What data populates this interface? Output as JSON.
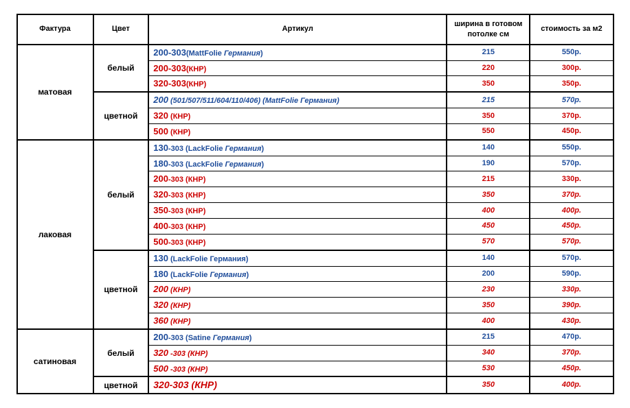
{
  "colors": {
    "blue": "#1e4c9a",
    "red": "#cc0000",
    "border": "#000000",
    "bg": "#ffffff"
  },
  "font": {
    "family": "Arial",
    "base_size_pt": 11,
    "code_size_pt": 13
  },
  "headers": {
    "faktura": "Фактура",
    "color": "Цвет",
    "article": "Артикул",
    "width": "ширина в готовом потолке см",
    "price": "стоимость за м2"
  },
  "groups": [
    {
      "faktura": "матовая",
      "colors": [
        {
          "color": "белый",
          "rows": [
            {
              "code": "200-303",
              "suffix": "",
              "brand_prefix": "(MattFolie ",
              "brand_italic": "Германия",
              "brand_suffix": ")",
              "width": "215",
              "price": "550р.",
              "c": "blue",
              "italic_vals": false
            },
            {
              "code": "200-303",
              "suffix": "",
              "brand_prefix": "(",
              "brand_italic": "",
              "brand_suffix": "КНР)",
              "width": "220",
              "price": "300р.",
              "c": "red",
              "italic_vals": false
            },
            {
              "code": "320-303",
              "suffix": "",
              "brand_prefix": "(",
              "brand_italic": "",
              "brand_suffix": "КНР)",
              "width": "350",
              "price": "350р.",
              "c": "red",
              "italic_vals": false
            }
          ]
        },
        {
          "color": "цветной",
          "rows": [
            {
              "code": "200",
              "suffix": "   (501/507/511/604/110/406)",
              "brand_prefix": "   (MattFolie ",
              "brand_italic": "Германия",
              "brand_suffix": ")",
              "width": "215",
              "price": "570р.",
              "c": "blue",
              "italic_vals": true,
              "art_italic": true
            },
            {
              "code": "320",
              "suffix": "",
              "brand_prefix": " (",
              "brand_italic": "",
              "brand_suffix": "КНР)",
              "width": "350",
              "price": "370р.",
              "c": "red",
              "italic_vals": false
            },
            {
              "code": "500",
              "suffix": "",
              "brand_prefix": " (",
              "brand_italic": "",
              "brand_suffix": "КНР)",
              "width": "550",
              "price": "450р.",
              "c": "red",
              "italic_vals": false
            }
          ]
        }
      ]
    },
    {
      "faktura": "лаковая",
      "colors": [
        {
          "color": "белый",
          "rows": [
            {
              "code": "130",
              "suffix": "-303",
              "brand_prefix": " (LackFolie ",
              "brand_italic": "Германия",
              "brand_suffix": ")",
              "width": "140",
              "price": "550р.",
              "c": "blue",
              "italic_vals": false
            },
            {
              "code": "180",
              "suffix": "-303",
              "brand_prefix": " (LackFolie ",
              "brand_italic": "Германия",
              "brand_suffix": ")",
              "width": "190",
              "price": "570р.",
              "c": "blue",
              "italic_vals": false
            },
            {
              "code": "200",
              "suffix": "-303",
              "brand_prefix": " (",
              "brand_italic": "",
              "brand_suffix": "КНР)",
              "width": "215",
              "price": "330р.",
              "c": "red",
              "italic_vals": false
            },
            {
              "code": "320",
              "suffix": "-303",
              "brand_prefix": " (",
              "brand_italic": "",
              "brand_suffix": "КНР)",
              "width": "350",
              "price": "370р.",
              "c": "red",
              "italic_vals": true
            },
            {
              "code": "350",
              "suffix": "-303",
              "brand_prefix": " (",
              "brand_italic": "",
              "brand_suffix": "КНР)",
              "width": "400",
              "price": "400р.",
              "c": "red",
              "italic_vals": true
            },
            {
              "code": "400",
              "suffix": "-303",
              "brand_prefix": " (",
              "brand_italic": "",
              "brand_suffix": "КНР)",
              "width": "450",
              "price": "450р.",
              "c": "red",
              "italic_vals": true
            },
            {
              "code": "500",
              "suffix": "-303",
              "brand_prefix": " (",
              "brand_italic": "",
              "brand_suffix": "КНР)",
              "width": "570",
              "price": "570р.",
              "c": "red",
              "italic_vals": true
            }
          ]
        },
        {
          "color": "цветной",
          "rows": [
            {
              "code": "130",
              "suffix": "",
              "brand_prefix": "   (LackFolie ",
              "brand_italic": "",
              "brand_suffix": "Германия)",
              "width": "140",
              "price": "570р.",
              "c": "blue",
              "italic_vals": false
            },
            {
              "code": "180",
              "suffix": "",
              "brand_prefix": "   (LackFolie ",
              "brand_italic": "Германия",
              "brand_suffix": ")",
              "width": "200",
              "price": "590р.",
              "c": "blue",
              "italic_vals": false
            },
            {
              "code": "200",
              "suffix": "",
              "brand_prefix": "   (",
              "brand_italic": "",
              "brand_suffix": "КНР)",
              "width": "230",
              "price": "330р.",
              "c": "red",
              "italic_vals": true,
              "art_italic": true
            },
            {
              "code": "320",
              "suffix": "",
              "brand_prefix": "   (",
              "brand_italic": "",
              "brand_suffix": "КНР)",
              "width": "350",
              "price": "390р.",
              "c": "red",
              "italic_vals": true,
              "art_italic": true
            },
            {
              "code": "360",
              "suffix": "",
              "brand_prefix": "   (",
              "brand_italic": "",
              "brand_suffix": "КНР)",
              "width": "400",
              "price": "430р.",
              "c": "red",
              "italic_vals": true,
              "art_italic": true
            }
          ]
        }
      ]
    },
    {
      "faktura": "сатиновая",
      "colors": [
        {
          "color": "белый",
          "rows": [
            {
              "code": "200",
              "suffix": "-303",
              "brand_prefix": " (Satine ",
              "brand_italic": "Германия",
              "brand_suffix": ")",
              "width": "215",
              "price": "470р.",
              "c": "blue",
              "italic_vals": false
            },
            {
              "code": "320",
              "suffix": " -303",
              "brand_prefix": " (",
              "brand_italic": "",
              "brand_suffix": "КНР)",
              "width": "340",
              "price": "370р.",
              "c": "red",
              "italic_vals": true,
              "art_italic": true
            },
            {
              "code": "500",
              "suffix": " -303",
              "brand_prefix": " (",
              "brand_italic": "",
              "brand_suffix": "КНР)",
              "width": "530",
              "price": "450р.",
              "c": "red",
              "italic_vals": true,
              "art_italic": true
            }
          ]
        },
        {
          "color": "цветной",
          "rows": [
            {
              "code": "320-303",
              "suffix": "",
              "brand_prefix": " (",
              "brand_italic": "",
              "brand_suffix": "КНР)",
              "width": "350",
              "price": "400р.",
              "c": "red",
              "italic_vals": true,
              "art_italic": true,
              "big": true
            }
          ]
        }
      ]
    }
  ]
}
